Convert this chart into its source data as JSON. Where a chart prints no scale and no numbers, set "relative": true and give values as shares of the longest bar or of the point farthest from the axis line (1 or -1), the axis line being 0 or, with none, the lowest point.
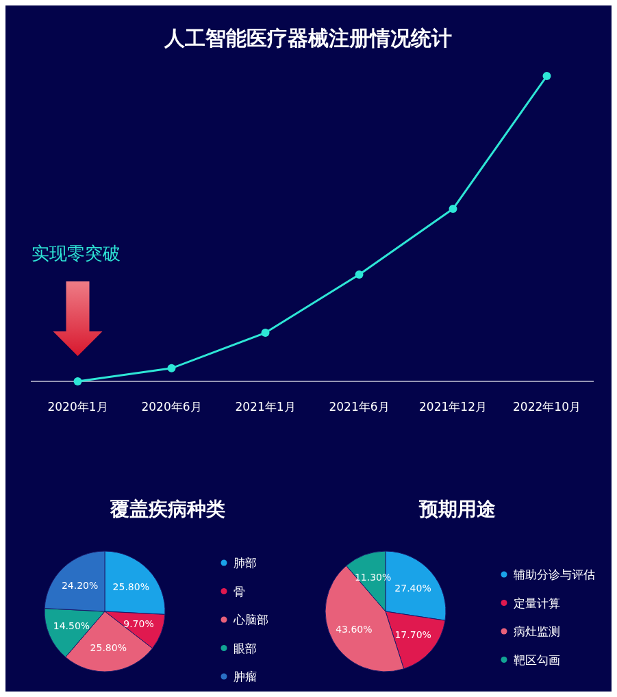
{
  "chart_data": [
    {
      "type": "line",
      "title": "人工智能医疗器械注册情况统计",
      "categories": [
        "2020年1月",
        "2020年6月",
        "2021年1月",
        "2021年6月",
        "2021年12月",
        "2022年10月"
      ],
      "relative": true,
      "marker": "circle",
      "line_style": "solid",
      "legend": false,
      "series": [
        {
          "color": "#2ee6d6",
          "values": [
            0,
            0.043,
            0.159,
            0.35,
            0.565,
            1
          ]
        }
      ],
      "annotations": [
        "实现零突破"
      ]
    },
    {
      "type": "pie",
      "title": "覆盖疾病种类",
      "categories": [
        "肺部",
        "骨",
        "心脑部",
        "眼部",
        "肿瘤"
      ],
      "values": [
        25.8,
        9.7,
        25.8,
        14.5,
        24.2
      ],
      "value_labels": [
        "25.80%",
        "9.70%",
        "25.80%",
        "14.50%",
        "24.20%"
      ],
      "colors": [
        "#1aa3e8",
        "#e0194f",
        "#e8607a",
        "#12a394",
        "#2a6fc4"
      ],
      "legend": "right"
    },
    {
      "type": "pie",
      "title": "预期用途",
      "categories": [
        "辅助分诊与评估",
        "定量计算",
        "病灶监测",
        "靶区勾画"
      ],
      "values": [
        27.4,
        17.7,
        43.6,
        11.3
      ],
      "value_labels": [
        "27.40%",
        "17.70%",
        "43.60%",
        "11.30%"
      ],
      "colors": [
        "#1aa3e8",
        "#e0194f",
        "#e8607a",
        "#12a394"
      ],
      "legend": "right"
    }
  ]
}
